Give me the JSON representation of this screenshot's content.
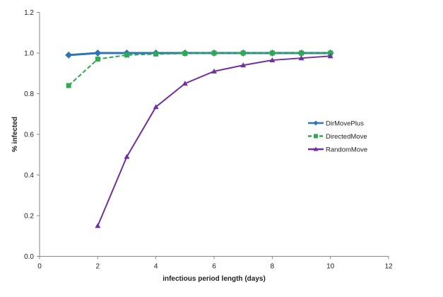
{
  "chart_data": {
    "type": "line",
    "title": "",
    "xlabel": "infectious period length (days)",
    "ylabel": "% infected",
    "xlim": [
      0,
      12
    ],
    "ylim": [
      0,
      1.2
    ],
    "xticks": [
      "0",
      "2",
      "4",
      "6",
      "8",
      "10",
      "12"
    ],
    "yticks": [
      "0.0",
      "0.2",
      "0.4",
      "0.6",
      "0.8",
      "1.0",
      "1.2"
    ],
    "grid": false,
    "legend_position": "right",
    "series": [
      {
        "name": "DirMovePlus",
        "color": "#2e75b6",
        "marker": "diamond",
        "dash": false,
        "x": [
          1,
          2,
          3,
          4,
          5,
          6,
          7,
          8,
          9,
          10
        ],
        "y": [
          0.99,
          1.0,
          1.0,
          1.0,
          1.0,
          1.0,
          1.0,
          1.0,
          1.0,
          1.0
        ]
      },
      {
        "name": "DirectedMove",
        "color": "#2eab4f",
        "marker": "square",
        "dash": true,
        "x": [
          1,
          2,
          3,
          4,
          5,
          6,
          7,
          8,
          9,
          10
        ],
        "y": [
          0.84,
          0.97,
          0.99,
          0.995,
          0.998,
          1.0,
          1.0,
          1.0,
          1.0,
          1.0
        ]
      },
      {
        "name": "RandomMove",
        "color": "#7030a0",
        "marker": "triangle",
        "dash": false,
        "x": [
          2,
          3,
          4,
          5,
          6,
          7,
          8,
          9,
          10
        ],
        "y": [
          0.15,
          0.49,
          0.735,
          0.85,
          0.91,
          0.94,
          0.965,
          0.975,
          0.985
        ]
      }
    ]
  }
}
